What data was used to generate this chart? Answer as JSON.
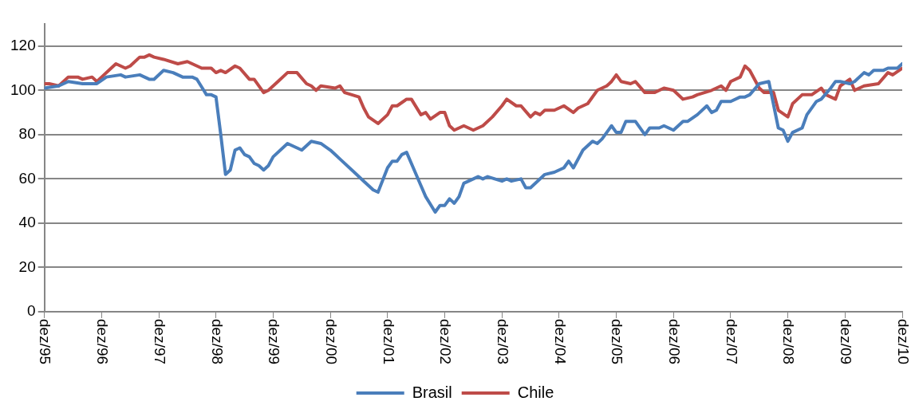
{
  "chart_data": {
    "type": "line",
    "legend": "bottom",
    "grid": "y",
    "marker": "none",
    "line_style": "solid",
    "xlim": [
      "1995-12",
      "2010-12"
    ],
    "ylim": [
      0,
      130
    ],
    "yticks": [
      0,
      20,
      40,
      60,
      80,
      100,
      120
    ],
    "xticks": [
      {
        "value": "1995-12",
        "label": "dez/95"
      },
      {
        "value": "1996-12",
        "label": "dez/96"
      },
      {
        "value": "1997-12",
        "label": "dez/97"
      },
      {
        "value": "1998-12",
        "label": "dez/98"
      },
      {
        "value": "1999-12",
        "label": "dez/99"
      },
      {
        "value": "2000-12",
        "label": "dez/00"
      },
      {
        "value": "2001-12",
        "label": "dez/01"
      },
      {
        "value": "2002-12",
        "label": "dez/02"
      },
      {
        "value": "2003-12",
        "label": "dez/03"
      },
      {
        "value": "2004-12",
        "label": "dez/04"
      },
      {
        "value": "2005-12",
        "label": "dez/05"
      },
      {
        "value": "2006-12",
        "label": "dez/06"
      },
      {
        "value": "2007-12",
        "label": "dez/07"
      },
      {
        "value": "2008-12",
        "label": "dez/08"
      },
      {
        "value": "2009-12",
        "label": "dez/09"
      },
      {
        "value": "2010-12",
        "label": "dez/10"
      }
    ],
    "series": [
      {
        "name": "Brasil",
        "color": "#4a7ebb",
        "x": [
          "1995-12",
          "1996-03",
          "1996-05",
          "1996-08",
          "1996-11",
          "1997-01",
          "1997-04",
          "1997-05",
          "1997-08",
          "1997-10",
          "1997-11",
          "1998-01",
          "1998-03",
          "1998-05",
          "1998-07",
          "1998-08",
          "1998-10",
          "1998-11",
          "1998-12",
          "1999-01",
          "1999-02",
          "1999-03",
          "1999-04",
          "1999-05",
          "1999-06",
          "1999-07",
          "1999-08",
          "1999-09",
          "1999-10",
          "1999-11",
          "1999-12",
          "2000-03",
          "2000-06",
          "2000-08",
          "2000-10",
          "2000-12",
          "2001-01",
          "2001-02",
          "2001-05",
          "2001-07",
          "2001-08",
          "2001-09",
          "2001-10",
          "2001-12",
          "2002-01",
          "2002-02",
          "2002-03",
          "2002-04",
          "2002-05",
          "2002-07",
          "2002-08",
          "2002-10",
          "2002-11",
          "2002-12",
          "2003-01",
          "2003-02",
          "2003-03",
          "2003-04",
          "2003-06",
          "2003-07",
          "2003-08",
          "2003-09",
          "2003-12",
          "2004-01",
          "2004-02",
          "2004-04",
          "2004-05",
          "2004-06",
          "2004-09",
          "2004-11",
          "2005-01",
          "2005-02",
          "2005-03",
          "2005-05",
          "2005-07",
          "2005-08",
          "2005-09",
          "2005-11",
          "2005-12",
          "2006-01",
          "2006-02",
          "2006-04",
          "2006-06",
          "2006-07",
          "2006-09",
          "2006-10",
          "2006-12",
          "2007-02",
          "2007-03",
          "2007-05",
          "2007-07",
          "2007-08",
          "2007-09",
          "2007-10",
          "2007-12",
          "2008-02",
          "2008-03",
          "2008-04",
          "2008-06",
          "2008-08",
          "2008-10",
          "2008-11",
          "2008-12",
          "2009-01",
          "2009-03",
          "2009-04",
          "2009-06",
          "2009-07",
          "2009-09",
          "2009-10",
          "2009-11",
          "2010-01",
          "2010-02",
          "2010-04",
          "2010-05",
          "2010-06",
          "2010-08",
          "2010-09",
          "2010-11",
          "2010-12"
        ],
        "values": [
          101,
          102,
          104,
          103,
          103,
          106,
          107,
          106,
          107,
          105,
          105,
          109,
          108,
          106,
          106,
          105,
          98,
          98,
          97,
          80,
          62,
          64,
          73,
          74,
          71,
          70,
          67,
          66,
          64,
          66,
          70,
          76,
          73,
          77,
          76,
          73,
          71,
          69,
          63,
          59,
          57,
          55,
          54,
          65,
          68,
          68,
          71,
          72,
          67,
          57,
          52,
          45,
          48,
          48,
          51,
          49,
          52,
          58,
          60,
          61,
          60,
          61,
          59,
          60,
          59,
          60,
          56,
          56,
          62,
          63,
          65,
          68,
          65,
          73,
          77,
          76,
          78,
          84,
          81,
          81,
          86,
          86,
          80,
          83,
          83,
          84,
          82,
          86,
          86,
          89,
          93,
          90,
          91,
          95,
          95,
          97,
          97,
          98,
          103,
          104,
          83,
          82,
          77,
          81,
          83,
          89,
          95,
          96,
          101,
          104,
          104,
          103,
          104,
          108,
          107,
          109,
          109,
          110,
          110,
          112
        ]
      },
      {
        "name": "Chile",
        "color": "#be4b48",
        "x": [
          "1995-12",
          "1996-01",
          "1996-03",
          "1996-05",
          "1996-07",
          "1996-08",
          "1996-10",
          "1996-11",
          "1996-12",
          "1997-02",
          "1997-03",
          "1997-05",
          "1997-06",
          "1997-08",
          "1997-09",
          "1997-10",
          "1997-11",
          "1998-01",
          "1998-04",
          "1998-06",
          "1998-07",
          "1998-09",
          "1998-11",
          "1998-12",
          "1999-01",
          "1999-02",
          "1999-04",
          "1999-05",
          "1999-07",
          "1999-08",
          "1999-10",
          "1999-11",
          "2000-01",
          "2000-03",
          "2000-05",
          "2000-07",
          "2000-08",
          "2000-09",
          "2000-10",
          "2001-01",
          "2001-02",
          "2001-03",
          "2001-06",
          "2001-07",
          "2001-08",
          "2001-10",
          "2001-12",
          "2002-01",
          "2002-02",
          "2002-04",
          "2002-05",
          "2002-07",
          "2002-08",
          "2002-09",
          "2002-11",
          "2002-12",
          "2003-01",
          "2003-02",
          "2003-04",
          "2003-06",
          "2003-08",
          "2003-10",
          "2003-12",
          "2004-01",
          "2004-03",
          "2004-04",
          "2004-06",
          "2004-07",
          "2004-08",
          "2004-09",
          "2004-11",
          "2005-01",
          "2005-03",
          "2005-04",
          "2005-06",
          "2005-08",
          "2005-10",
          "2005-11",
          "2005-12",
          "2006-01",
          "2006-03",
          "2006-04",
          "2006-06",
          "2006-08",
          "2006-10",
          "2006-12",
          "2007-02",
          "2007-04",
          "2007-05",
          "2007-08",
          "2007-10",
          "2007-11",
          "2007-12",
          "2008-02",
          "2008-03",
          "2008-04",
          "2008-06",
          "2008-07",
          "2008-09",
          "2008-10",
          "2008-12",
          "2009-01",
          "2009-03",
          "2009-05",
          "2009-07",
          "2009-08",
          "2009-10",
          "2009-11",
          "2010-01",
          "2010-02",
          "2010-04",
          "2010-07",
          "2010-09",
          "2010-10",
          "2010-12"
        ],
        "values": [
          103,
          103,
          102,
          106,
          106,
          105,
          106,
          104,
          106,
          110,
          112,
          110,
          111,
          115,
          115,
          116,
          115,
          114,
          112,
          113,
          112,
          110,
          110,
          108,
          109,
          108,
          111,
          110,
          105,
          105,
          99,
          100,
          104,
          108,
          108,
          103,
          102,
          100,
          102,
          101,
          102,
          99,
          97,
          92,
          88,
          85,
          89,
          93,
          93,
          96,
          96,
          89,
          90,
          87,
          90,
          90,
          84,
          82,
          84,
          82,
          84,
          88,
          93,
          96,
          93,
          93,
          88,
          90,
          89,
          91,
          91,
          93,
          90,
          92,
          94,
          100,
          102,
          104,
          107,
          104,
          103,
          104,
          99,
          99,
          101,
          100,
          96,
          97,
          98,
          100,
          102,
          100,
          104,
          106,
          111,
          109,
          101,
          99,
          99,
          91,
          88,
          94,
          98,
          98,
          101,
          98,
          96,
          102,
          105,
          100,
          102,
          103,
          108,
          107,
          110
        ]
      }
    ]
  }
}
